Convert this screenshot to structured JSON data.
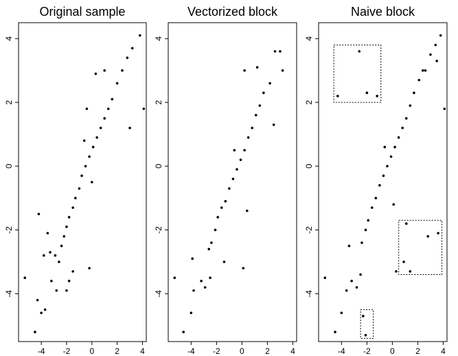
{
  "chart_data": [
    {
      "type": "scatter",
      "title": "Original sample",
      "xlim": [
        -5.8,
        4.3
      ],
      "ylim": [
        -5.5,
        4.5
      ],
      "x_ticks": [
        -4,
        -2,
        0,
        2,
        4
      ],
      "y_ticks": [
        -4,
        -2,
        0,
        2,
        4
      ],
      "x_tick_labels": [
        "-4",
        "-2",
        "0",
        "2",
        "4"
      ],
      "y_tick_labels": [
        "-4",
        "-2",
        "0",
        "2",
        "4"
      ],
      "grid": false,
      "points": [
        [
          -5.3,
          -3.5
        ],
        [
          -4.5,
          -5.2
        ],
        [
          -4.3,
          -4.2
        ],
        [
          -4.0,
          -4.6
        ],
        [
          -3.7,
          -4.5
        ],
        [
          -3.2,
          -3.6
        ],
        [
          -2.8,
          -3.9
        ],
        [
          -2.9,
          -2.8
        ],
        [
          -2.6,
          -3.0
        ],
        [
          -2.4,
          -2.5
        ],
        [
          -2.2,
          -2.2
        ],
        [
          -2.0,
          -1.9
        ],
        [
          -1.8,
          -1.6
        ],
        [
          -1.5,
          -1.3
        ],
        [
          -1.3,
          -1.0
        ],
        [
          -1.0,
          -0.7
        ],
        [
          -0.8,
          -0.3
        ],
        [
          -0.5,
          0.0
        ],
        [
          -0.2,
          0.3
        ],
        [
          0.1,
          0.6
        ],
        [
          0.4,
          0.9
        ],
        [
          0.7,
          1.2
        ],
        [
          1.0,
          1.5
        ],
        [
          1.3,
          1.8
        ],
        [
          1.6,
          2.1
        ],
        [
          2.0,
          2.6
        ],
        [
          2.4,
          3.0
        ],
        [
          2.8,
          3.4
        ],
        [
          3.2,
          3.7
        ],
        [
          3.8,
          4.1
        ],
        [
          4.1,
          1.8
        ],
        [
          3.0,
          1.2
        ],
        [
          1.0,
          3.0
        ],
        [
          0.3,
          2.9
        ],
        [
          -0.4,
          1.8
        ],
        [
          -3.3,
          -2.7
        ],
        [
          -2.0,
          -3.9
        ],
        [
          -1.8,
          -3.6
        ],
        [
          -1.5,
          -3.3
        ],
        [
          -0.2,
          -3.2
        ],
        [
          -4.2,
          -1.5
        ],
        [
          -3.5,
          -2.1
        ],
        [
          -3.8,
          -2.8
        ],
        [
          -0.6,
          0.8
        ],
        [
          0.0,
          -0.5
        ]
      ]
    },
    {
      "type": "scatter",
      "title": "Vectorized block",
      "xlim": [
        -5.8,
        4.3
      ],
      "ylim": [
        -5.5,
        4.5
      ],
      "x_ticks": [
        -4,
        -2,
        0,
        2,
        4
      ],
      "y_ticks": [
        -4,
        -2,
        0,
        2,
        4
      ],
      "x_tick_labels": [
        "-4",
        "-2",
        "0",
        "2",
        "4"
      ],
      "y_tick_labels": [
        "-4",
        "-2",
        "0",
        "2",
        "4"
      ],
      "grid": false,
      "points": [
        [
          -5.3,
          -3.5
        ],
        [
          -4.6,
          -5.2
        ],
        [
          -4.0,
          -4.6
        ],
        [
          -3.8,
          -3.9
        ],
        [
          -3.2,
          -3.6
        ],
        [
          -2.9,
          -3.8
        ],
        [
          -2.5,
          -3.5
        ],
        [
          -2.4,
          -2.4
        ],
        [
          -2.1,
          -2.0
        ],
        [
          -1.9,
          -1.6
        ],
        [
          -1.6,
          -1.3
        ],
        [
          -1.3,
          -1.1
        ],
        [
          -1.0,
          -0.7
        ],
        [
          -0.7,
          -0.4
        ],
        [
          -0.4,
          -0.1
        ],
        [
          -0.1,
          0.2
        ],
        [
          0.2,
          0.5
        ],
        [
          0.5,
          0.9
        ],
        [
          0.8,
          1.2
        ],
        [
          1.1,
          1.6
        ],
        [
          1.4,
          1.9
        ],
        [
          1.7,
          2.3
        ],
        [
          2.2,
          2.6
        ],
        [
          2.6,
          3.6
        ],
        [
          3.0,
          3.6
        ],
        [
          3.2,
          3.0
        ],
        [
          0.2,
          3.0
        ],
        [
          1.2,
          3.1
        ],
        [
          2.5,
          1.3
        ],
        [
          0.1,
          -3.2
        ],
        [
          -0.6,
          0.5
        ],
        [
          -2.6,
          -2.6
        ],
        [
          -3.9,
          -2.9
        ],
        [
          -1.4,
          -3.0
        ],
        [
          0.4,
          -1.4
        ]
      ]
    },
    {
      "type": "scatter",
      "title": "Naive block",
      "xlim": [
        -5.8,
        4.3
      ],
      "ylim": [
        -5.5,
        4.5
      ],
      "x_ticks": [
        -4,
        -2,
        0,
        2,
        4
      ],
      "y_ticks": [
        -4,
        -2,
        0,
        2,
        4
      ],
      "x_tick_labels": [
        "-4",
        "-2",
        "0",
        "2",
        "4"
      ],
      "y_tick_labels": [
        "-4",
        "-2",
        "0",
        "2",
        "4"
      ],
      "grid": false,
      "points": [
        [
          -5.3,
          -3.5
        ],
        [
          -4.5,
          -5.2
        ],
        [
          -4.0,
          -4.6
        ],
        [
          -3.6,
          -3.9
        ],
        [
          -3.2,
          -3.6
        ],
        [
          -2.8,
          -3.8
        ],
        [
          -2.5,
          -3.4
        ],
        [
          -2.4,
          -2.4
        ],
        [
          -2.1,
          -2.0
        ],
        [
          -1.9,
          -1.7
        ],
        [
          -1.6,
          -1.3
        ],
        [
          -1.3,
          -1.0
        ],
        [
          -1.0,
          -0.6
        ],
        [
          -0.7,
          -0.3
        ],
        [
          -0.4,
          0.0
        ],
        [
          -0.1,
          0.3
        ],
        [
          0.2,
          0.6
        ],
        [
          0.5,
          0.9
        ],
        [
          0.8,
          1.2
        ],
        [
          1.1,
          1.5
        ],
        [
          1.4,
          1.9
        ],
        [
          1.7,
          2.3
        ],
        [
          2.1,
          2.7
        ],
        [
          2.6,
          3.0
        ],
        [
          3.0,
          3.5
        ],
        [
          3.4,
          3.8
        ],
        [
          3.8,
          4.1
        ],
        [
          4.1,
          1.8
        ],
        [
          3.5,
          3.3
        ],
        [
          2.4,
          3.0
        ],
        [
          -4.3,
          2.2
        ],
        [
          -2.6,
          3.6
        ],
        [
          -2.0,
          2.3
        ],
        [
          -1.2,
          2.2
        ],
        [
          2.8,
          -2.2
        ],
        [
          3.6,
          -2.1
        ],
        [
          1.1,
          -1.8
        ],
        [
          0.9,
          -3.0
        ],
        [
          1.4,
          -3.3
        ],
        [
          0.3,
          -3.3
        ],
        [
          -2.3,
          -4.7
        ],
        [
          -2.1,
          -5.3
        ],
        [
          -0.6,
          0.6
        ],
        [
          0.1,
          -1.2
        ],
        [
          -3.4,
          -2.5
        ]
      ],
      "annotations": [
        {
          "type": "dotted-box",
          "x_range": [
            -4.6,
            -0.9
          ],
          "y_range": [
            2.0,
            3.8
          ]
        },
        {
          "type": "dotted-box",
          "x_range": [
            0.5,
            3.9
          ],
          "y_range": [
            -3.4,
            -1.7
          ]
        },
        {
          "type": "dotted-box",
          "x_range": [
            -2.5,
            -1.5
          ],
          "y_range": [
            -5.4,
            -4.5
          ]
        }
      ]
    }
  ]
}
